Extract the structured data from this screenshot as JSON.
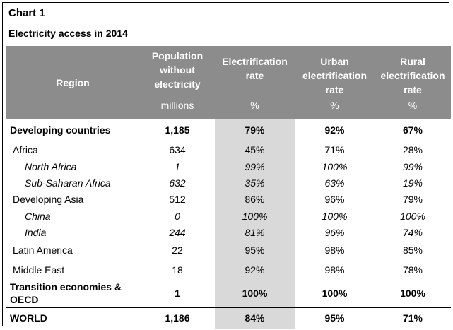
{
  "chart_label": "Chart 1",
  "title": "Electricity access in 2014",
  "headers": {
    "region": "Region",
    "population": "Population without electricity",
    "population_unit": "millions",
    "electrification": "Electrification rate",
    "electrification_unit": "%",
    "urban": "Urban electrification rate",
    "urban_unit": "%",
    "rural": "Rural electrification rate",
    "rural_unit": "%"
  },
  "rows": [
    {
      "region": "Developing countries",
      "population": "1,185",
      "rate": "79%",
      "urban": "92%",
      "rural": "67%"
    },
    {
      "region": "Africa",
      "population": "634",
      "rate": "45%",
      "urban": "71%",
      "rural": "28%"
    },
    {
      "region": "North Africa",
      "population": "1",
      "rate": "99%",
      "urban": "100%",
      "rural": "99%"
    },
    {
      "region": "Sub-Saharan Africa",
      "population": "632",
      "rate": "35%",
      "urban": "63%",
      "rural": "19%"
    },
    {
      "region": "Developing Asia",
      "population": "512",
      "rate": "86%",
      "urban": "96%",
      "rural": "79%"
    },
    {
      "region": "China",
      "population": "0",
      "rate": "100%",
      "urban": "100%",
      "rural": "100%"
    },
    {
      "region": "India",
      "population": "244",
      "rate": "81%",
      "urban": "96%",
      "rural": "74%"
    },
    {
      "region": "Latin America",
      "population": "22",
      "rate": "95%",
      "urban": "98%",
      "rural": "85%"
    },
    {
      "region": "Middle East",
      "population": "18",
      "rate": "92%",
      "urban": "98%",
      "rural": "78%"
    },
    {
      "region": "Transition economies & OECD",
      "population": "1",
      "rate": "100%",
      "urban": "100%",
      "rural": "100%"
    },
    {
      "region": "WORLD",
      "population": "1,186",
      "rate": "84%",
      "urban": "95%",
      "rural": "71%"
    }
  ]
}
